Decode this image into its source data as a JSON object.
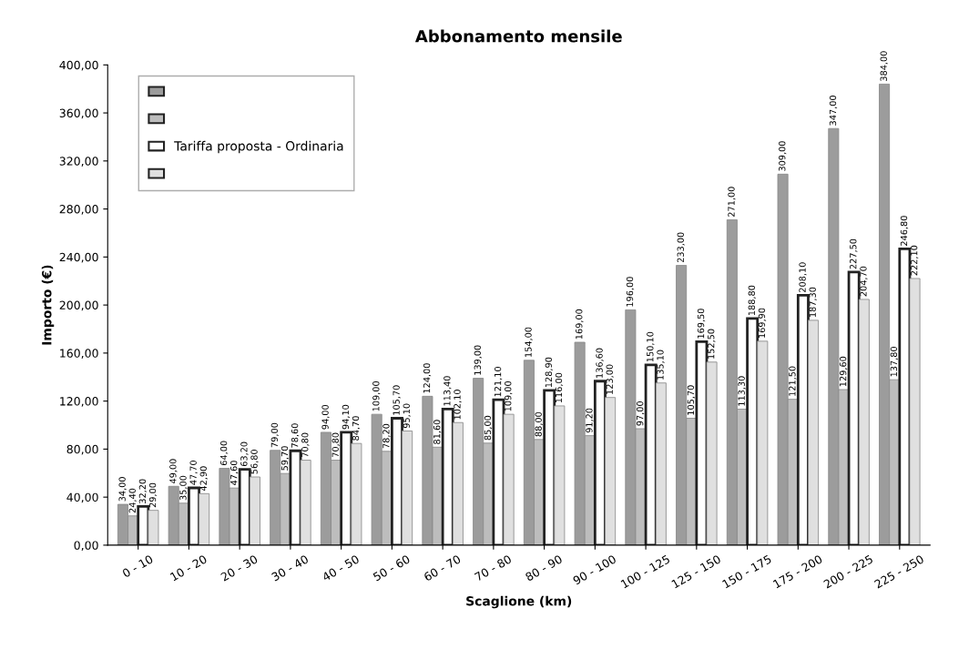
{
  "chart_data": {
    "type": "bar",
    "title": "Abbonamento mensile",
    "xlabel": "Scaglione (km)",
    "ylabel": "Importo (€)",
    "categories": [
      "0 - 10",
      "10 - 20",
      "20 - 30",
      "30 - 40",
      "40 - 50",
      "50 - 60",
      "60 - 70",
      "70 - 80",
      "80 - 90",
      "90 - 100",
      "100 - 125",
      "125 - 150",
      "150 - 175",
      "175 - 200",
      "200 - 225",
      "225 - 250"
    ],
    "series": [
      {
        "color": "#9c9c9c",
        "values": [
          34.0,
          49.0,
          64.0,
          79.0,
          94.0,
          109.0,
          124.0,
          139.0,
          154.0,
          169.0,
          196.0,
          233.0,
          271.0,
          309.0,
          347.0,
          384.0
        ],
        "value_labels": [
          "34,00",
          "49,00",
          "64,00",
          "79,00",
          "94,00",
          "109,00",
          "124,00",
          "139,00",
          "154,00",
          "169,00",
          "196,00",
          "233,00",
          "271,00",
          "309,00",
          "347,00",
          "384,00"
        ]
      },
      {
        "color": "#bdbdbd",
        "values": [
          24.4,
          35.0,
          47.6,
          59.7,
          70.8,
          78.2,
          81.6,
          85.0,
          88.0,
          91.2,
          97.0,
          105.7,
          113.3,
          121.5,
          129.6,
          137.8
        ],
        "value_labels": [
          "24,40",
          "35,00",
          "47,60",
          "59,70",
          "70,80",
          "78,20",
          "81,60",
          "85,00",
          "88,00",
          "91,20",
          "97,00",
          "105,70",
          "113,30",
          "121,50",
          "129,60",
          "137,80"
        ]
      },
      {
        "name": "Tariffa proposta - Ordinaria",
        "color": "#ffffff",
        "values": [
          32.2,
          47.7,
          63.2,
          78.6,
          94.1,
          105.7,
          113.4,
          121.1,
          128.9,
          136.6,
          150.1,
          169.5,
          188.8,
          208.1,
          227.5,
          246.8
        ],
        "value_labels": [
          "32,20",
          "47,70",
          "63,20",
          "78,60",
          "94,10",
          "105,70",
          "113,40",
          "121,10",
          "128,90",
          "136,60",
          "150,10",
          "169,50",
          "188,80",
          "208,10",
          "227,50",
          "246,80"
        ]
      },
      {
        "color": "#e0e0e0",
        "values": [
          29.0,
          42.9,
          56.8,
          70.8,
          84.7,
          95.1,
          102.1,
          109.0,
          116.0,
          123.0,
          135.1,
          152.5,
          169.9,
          187.3,
          204.7,
          222.1
        ],
        "value_labels": [
          "29,00",
          "42,90",
          "56,80",
          "70,80",
          "84,70",
          "95,10",
          "102,10",
          "109,00",
          "116,00",
          "123,00",
          "135,10",
          "152,50",
          "169,90",
          "187,30",
          "204,70",
          "222,10"
        ]
      }
    ],
    "ylim": [
      0,
      400
    ],
    "yticks": [
      {
        "value": 0,
        "label": "0,00"
      },
      {
        "value": 40,
        "label": "40,00"
      },
      {
        "value": 80,
        "label": "80,00"
      },
      {
        "value": 120,
        "label": "120,00"
      },
      {
        "value": 160,
        "label": "160,00"
      },
      {
        "value": 200,
        "label": "200,00"
      },
      {
        "value": 240,
        "label": "240,00"
      },
      {
        "value": 280,
        "label": "280,00"
      },
      {
        "value": 320,
        "label": "320,00"
      },
      {
        "value": 360,
        "label": "360,00"
      },
      {
        "value": 400,
        "label": "400,00"
      }
    ],
    "grid": false,
    "legend": "top left"
  }
}
